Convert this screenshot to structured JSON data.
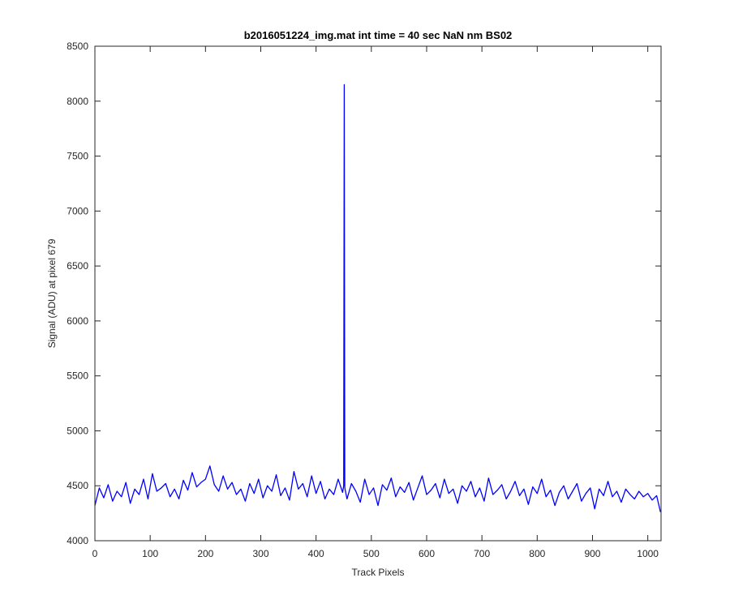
{
  "chart_data": {
    "type": "line",
    "title": "b2016051224_img.mat int time = 40 sec  NaN nm BS02",
    "x_label": "Track Pixels",
    "y_label": "Signal (ADU) at pixel 679",
    "x": [
      0,
      8,
      16,
      24,
      32,
      40,
      48,
      56,
      64,
      72,
      80,
      88,
      96,
      104,
      112,
      120,
      128,
      136,
      144,
      152,
      160,
      168,
      176,
      184,
      192,
      200,
      208,
      216,
      224,
      232,
      240,
      248,
      256,
      264,
      272,
      280,
      288,
      296,
      304,
      312,
      320,
      328,
      336,
      344,
      352,
      360,
      368,
      376,
      384,
      392,
      400,
      408,
      416,
      424,
      432,
      440,
      448,
      450,
      451,
      452,
      456,
      464,
      472,
      480,
      488,
      496,
      504,
      512,
      520,
      528,
      536,
      544,
      552,
      560,
      568,
      576,
      584,
      592,
      600,
      608,
      616,
      624,
      632,
      640,
      648,
      656,
      664,
      672,
      680,
      688,
      696,
      704,
      712,
      720,
      728,
      736,
      744,
      752,
      760,
      768,
      776,
      784,
      792,
      800,
      808,
      816,
      824,
      832,
      840,
      848,
      856,
      864,
      872,
      880,
      888,
      896,
      904,
      912,
      920,
      928,
      936,
      944,
      952,
      960,
      968,
      976,
      984,
      992,
      1000,
      1008,
      1016,
      1023
    ],
    "series": [
      {
        "name": "signal",
        "color": "#0000ff",
        "values": [
          4320,
          4480,
          4390,
          4510,
          4360,
          4450,
          4400,
          4530,
          4340,
          4470,
          4420,
          4560,
          4380,
          4610,
          4450,
          4480,
          4520,
          4400,
          4470,
          4380,
          4550,
          4460,
          4620,
          4490,
          4530,
          4560,
          4680,
          4510,
          4450,
          4590,
          4470,
          4530,
          4420,
          4470,
          4360,
          4520,
          4430,
          4560,
          4390,
          4500,
          4450,
          4600,
          4410,
          4480,
          4370,
          4630,
          4470,
          4520,
          4400,
          4590,
          4430,
          4540,
          4380,
          4470,
          4420,
          4560,
          4440,
          4500,
          8150,
          4480,
          4380,
          4520,
          4450,
          4350,
          4560,
          4420,
          4480,
          4320,
          4510,
          4460,
          4570,
          4400,
          4490,
          4440,
          4530,
          4370,
          4480,
          4590,
          4420,
          4460,
          4520,
          4390,
          4560,
          4430,
          4470,
          4340,
          4500,
          4450,
          4540,
          4400,
          4480,
          4360,
          4570,
          4420,
          4460,
          4510,
          4380,
          4450,
          4540,
          4410,
          4470,
          4330,
          4490,
          4430,
          4560,
          4400,
          4460,
          4320,
          4440,
          4500,
          4380,
          4450,
          4520,
          4360,
          4430,
          4480,
          4290,
          4470,
          4410,
          4540,
          4400,
          4450,
          4350,
          4470,
          4420,
          4380,
          4450,
          4400,
          4430,
          4370,
          4410,
          4260
        ]
      }
    ],
    "xlim": [
      0,
      1024
    ],
    "xticks": [
      0,
      100,
      200,
      300,
      400,
      500,
      600,
      700,
      800,
      900,
      1000
    ],
    "ylim": [
      4000,
      8500
    ],
    "yticks": [
      4000,
      4500,
      5000,
      5500,
      6000,
      6500,
      7000,
      7500,
      8000,
      8500
    ],
    "grid": false
  }
}
